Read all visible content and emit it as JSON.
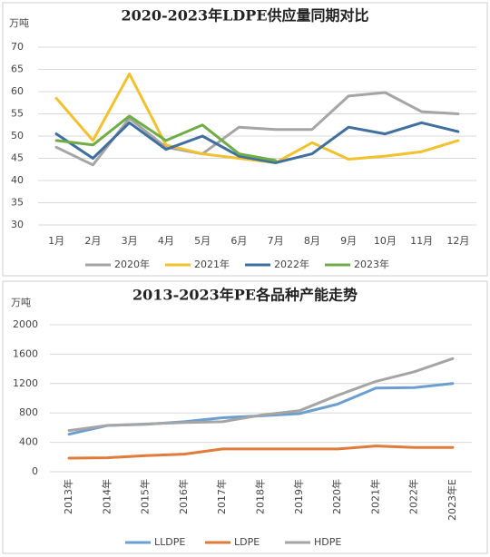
{
  "chart_data": [
    {
      "type": "line",
      "title": "2020-2023年LDPE供应量同期对比",
      "y_unit": "万吨",
      "categories": [
        "1月",
        "2月",
        "3月",
        "4月",
        "5月",
        "6月",
        "7月",
        "8月",
        "9月",
        "10月",
        "11月",
        "12月"
      ],
      "series": [
        {
          "name": "2020年",
          "color": "#a5a5a5",
          "values": [
            47.5,
            43.5,
            54,
            47.5,
            46,
            52,
            51.5,
            51.5,
            59,
            59.8,
            55.5,
            55
          ]
        },
        {
          "name": "2021年",
          "color": "#f2c12e",
          "values": [
            58.5,
            49,
            64,
            48,
            46,
            45,
            44,
            48.5,
            44.8,
            45.5,
            46.5,
            49
          ]
        },
        {
          "name": "2022年",
          "color": "#3e6f9e",
          "values": [
            50.5,
            45,
            53,
            47,
            50,
            45.5,
            44,
            46,
            52,
            50.5,
            53,
            51
          ]
        },
        {
          "name": "2023年",
          "color": "#70ad47",
          "values": [
            49,
            48,
            54.5,
            49,
            52.5,
            46,
            44.5,
            null,
            null,
            null,
            null,
            null
          ]
        }
      ],
      "ylim": [
        30,
        70
      ],
      "yticks": [
        30,
        35,
        40,
        45,
        50,
        55,
        60,
        65,
        70
      ],
      "grid": true,
      "legend": "bottom"
    },
    {
      "type": "line",
      "title": "2013-2023年PE各品种产能走势",
      "y_unit": "万吨",
      "categories": [
        "2013年",
        "2014年",
        "2015年",
        "2016年",
        "2017年",
        "2018年",
        "2019年",
        "2020年",
        "2021年",
        "2022年",
        "2023年E"
      ],
      "series": [
        {
          "name": "LLDPE",
          "color": "#6a9fcf",
          "values": [
            510,
            630,
            645,
            680,
            735,
            760,
            790,
            920,
            1140,
            1145,
            1200
          ]
        },
        {
          "name": "LDPE",
          "color": "#e07b39",
          "values": [
            185,
            190,
            220,
            240,
            310,
            310,
            310,
            310,
            350,
            330,
            330
          ]
        },
        {
          "name": "HDPE",
          "color": "#a5a5a5",
          "values": [
            560,
            630,
            650,
            670,
            680,
            770,
            830,
            1040,
            1230,
            1360,
            1540
          ]
        }
      ],
      "ylim": [
        0,
        2000
      ],
      "yticks": [
        0,
        400,
        800,
        1200,
        1600,
        2000
      ],
      "grid": true,
      "legend": "bottom"
    }
  ]
}
